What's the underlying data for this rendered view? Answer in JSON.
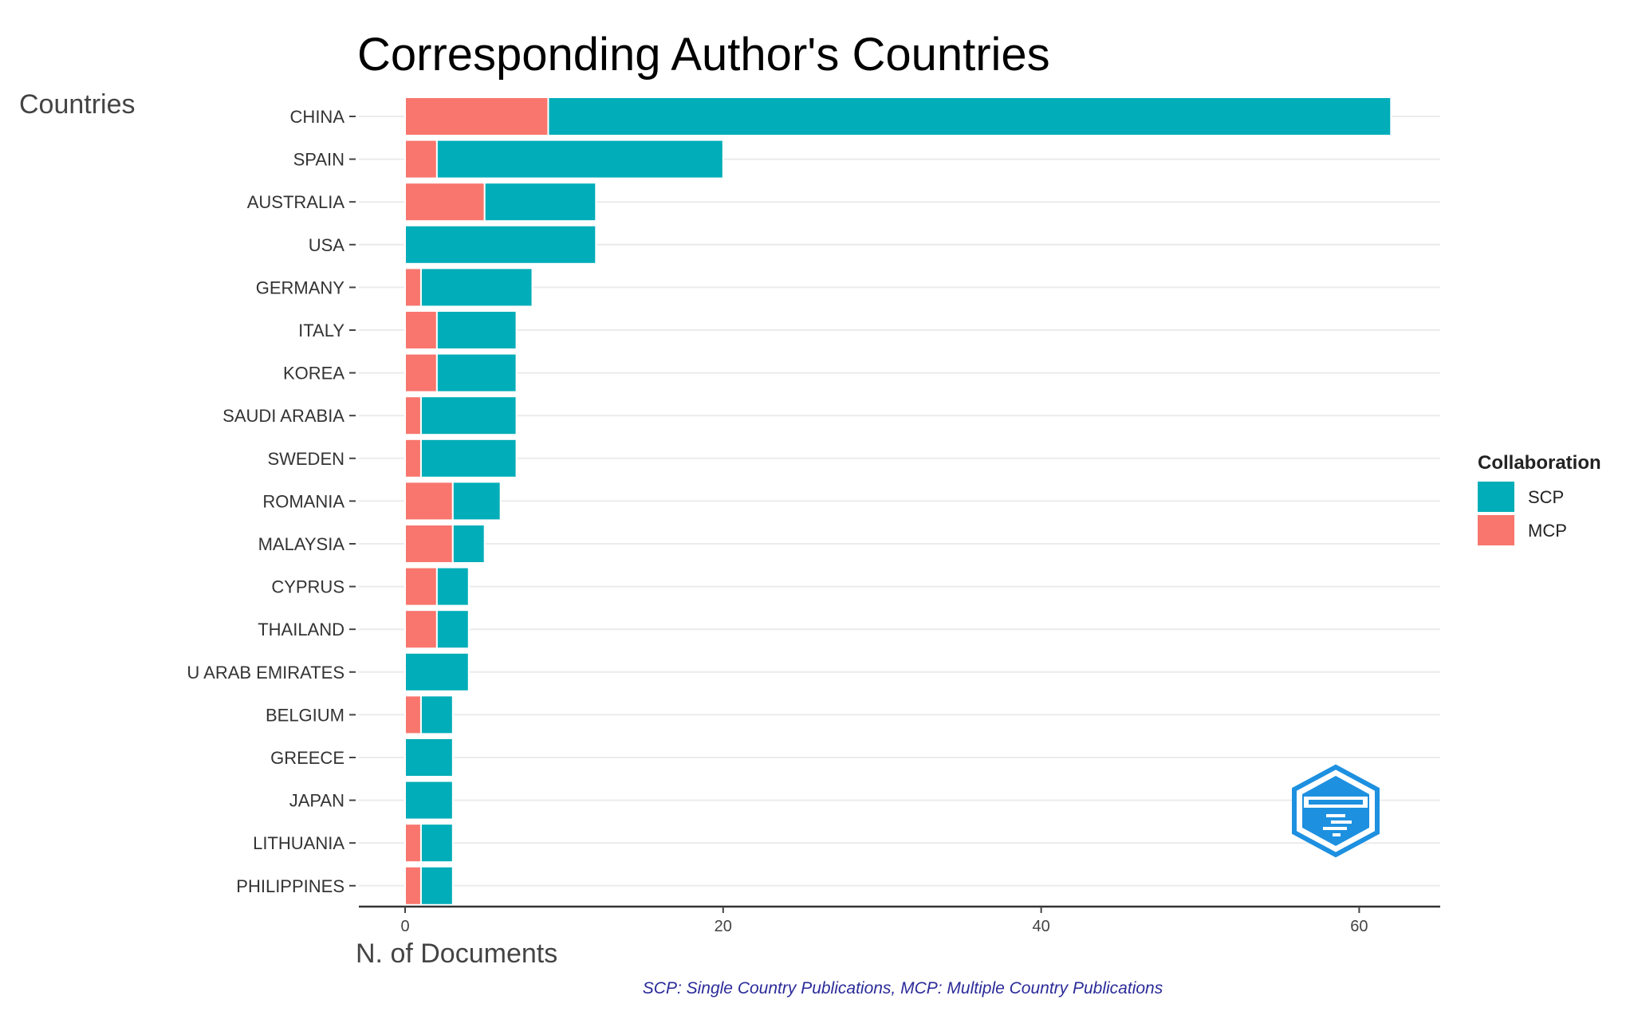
{
  "chart_data": {
    "type": "bar",
    "orientation": "horizontal",
    "stacked": true,
    "title": "Corresponding Author's Countries",
    "ylabel": "Countries",
    "xlabel": "N. of Documents",
    "caption": "SCP: Single Country Publications, MCP: Multiple Country Publications",
    "categories": [
      "CHINA",
      "SPAIN",
      "AUSTRALIA",
      "USA",
      "GERMANY",
      "ITALY",
      "KOREA",
      "SAUDI ARABIA",
      "SWEDEN",
      "ROMANIA",
      "MALAYSIA",
      "CYPRUS",
      "THAILAND",
      "U ARAB EMIRATES",
      "BELGIUM",
      "GREECE",
      "JAPAN",
      "LITHUANIA",
      "PHILIPPINES"
    ],
    "series": [
      {
        "name": "MCP",
        "color": "#F8766D",
        "values": [
          9,
          2,
          5,
          0,
          1,
          2,
          2,
          1,
          1,
          3,
          3,
          2,
          2,
          0,
          1,
          0,
          0,
          1,
          1
        ]
      },
      {
        "name": "SCP",
        "color": "#00ADB8",
        "values": [
          53,
          18,
          7,
          12,
          7,
          5,
          5,
          6,
          6,
          3,
          2,
          2,
          2,
          4,
          2,
          3,
          3,
          2,
          2
        ]
      }
    ],
    "xlim": [
      0,
      65
    ],
    "xticks": [
      0,
      20,
      40,
      60
    ],
    "grid": true,
    "legend": {
      "title": "Collaboration",
      "position": "right",
      "entries": [
        {
          "label": "SCP",
          "color": "#00ADB8"
        },
        {
          "label": "MCP",
          "color": "#F8766D"
        }
      ]
    }
  },
  "logo": {
    "name": "bibliometrix-logo-icon",
    "color": "#1E90E0"
  }
}
